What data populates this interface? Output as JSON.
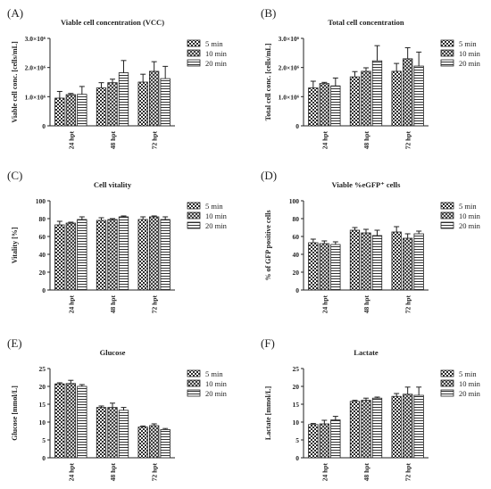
{
  "figure": {
    "series_names": [
      "5 min",
      "10 min",
      "20 min"
    ],
    "series_patterns": [
      "checker",
      "crosshatch",
      "hstripe"
    ],
    "categories": [
      "24 hpt",
      "48 hpt",
      "72 hpt"
    ]
  },
  "chart_data": [
    {
      "type": "bar",
      "panel": "(A)",
      "title": "Viable cell concentration (VCC)",
      "ylabel": "Viable cell conc. [cells/mL]",
      "ylim": [
        0,
        3000000
      ],
      "yticks": [
        {
          "v": 0,
          "label": "0"
        },
        {
          "v": 1000000,
          "label": "1.0×10⁶"
        },
        {
          "v": 2000000,
          "label": "2.0×10⁶"
        },
        {
          "v": 3000000,
          "label": "3.0×10⁶"
        }
      ],
      "categories": [
        "24 hpt",
        "48 hpt",
        "72 hpt"
      ],
      "series": [
        {
          "name": "5 min",
          "values": [
            950000,
            1300000,
            1500000
          ],
          "errors": [
            230000,
            180000,
            270000
          ]
        },
        {
          "name": "10 min",
          "values": [
            1070000,
            1480000,
            1870000
          ],
          "errors": [
            40000,
            120000,
            330000
          ]
        },
        {
          "name": "20 min",
          "values": [
            1080000,
            1820000,
            1620000
          ],
          "errors": [
            270000,
            420000,
            420000
          ]
        }
      ]
    },
    {
      "type": "bar",
      "panel": "(B)",
      "title": "Total cell concentration",
      "ylabel": "Total cell conc. [cells/mL]",
      "ylim": [
        0,
        3000000
      ],
      "yticks": [
        {
          "v": 0,
          "label": "0"
        },
        {
          "v": 1000000,
          "label": "1.0×10⁶"
        },
        {
          "v": 2000000,
          "label": "2.0×10⁶"
        },
        {
          "v": 3000000,
          "label": "3.0×10⁶"
        }
      ],
      "categories": [
        "24 hpt",
        "48 hpt",
        "72 hpt"
      ],
      "series": [
        {
          "name": "5 min",
          "values": [
            1300000,
            1680000,
            1870000
          ],
          "errors": [
            230000,
            180000,
            270000
          ]
        },
        {
          "name": "10 min",
          "values": [
            1450000,
            1870000,
            2300000
          ],
          "errors": [
            40000,
            120000,
            380000
          ]
        },
        {
          "name": "20 min",
          "values": [
            1370000,
            2230000,
            2050000
          ],
          "errors": [
            270000,
            520000,
            480000
          ]
        }
      ]
    },
    {
      "type": "bar",
      "panel": "(C)",
      "title": "Cell vitality",
      "ylabel": "Vitality [%]",
      "ylim": [
        0,
        100
      ],
      "yticks": [
        {
          "v": 0,
          "label": "0"
        },
        {
          "v": 20,
          "label": "20"
        },
        {
          "v": 40,
          "label": "40"
        },
        {
          "v": 60,
          "label": "60"
        },
        {
          "v": 80,
          "label": "80"
        },
        {
          "v": 100,
          "label": "100"
        }
      ],
      "categories": [
        "24 hpt",
        "48 hpt",
        "72 hpt"
      ],
      "series": [
        {
          "name": "5 min",
          "values": [
            73,
            78,
            79
          ],
          "errors": [
            4,
            3,
            3
          ]
        },
        {
          "name": "10 min",
          "values": [
            75,
            79,
            82
          ],
          "errors": [
            1,
            1,
            1
          ]
        },
        {
          "name": "20 min",
          "values": [
            79,
            82,
            79
          ],
          "errors": [
            3,
            1,
            3
          ]
        }
      ]
    },
    {
      "type": "bar",
      "panel": "(D)",
      "title": "Viable %eGFP⁺ cells",
      "ylabel": "% of GFP positive cells",
      "ylim": [
        0,
        100
      ],
      "yticks": [
        {
          "v": 0,
          "label": "0"
        },
        {
          "v": 20,
          "label": "20"
        },
        {
          "v": 40,
          "label": "40"
        },
        {
          "v": 60,
          "label": "60"
        },
        {
          "v": 80,
          "label": "80"
        },
        {
          "v": 100,
          "label": "100"
        }
      ],
      "categories": [
        "24 hpt",
        "48 hpt",
        "72 hpt"
      ],
      "series": [
        {
          "name": "5 min",
          "values": [
            53,
            67,
            65
          ],
          "errors": [
            4,
            3,
            6
          ]
        },
        {
          "name": "10 min",
          "values": [
            52,
            64,
            58
          ],
          "errors": [
            3,
            4,
            5
          ]
        },
        {
          "name": "20 min",
          "values": [
            51,
            61,
            63
          ],
          "errors": [
            3,
            6,
            3
          ]
        }
      ]
    },
    {
      "type": "bar",
      "panel": "(E)",
      "title": "Glucose",
      "ylabel": "Glucose [mmol/L]",
      "ylim": [
        0,
        25
      ],
      "yticks": [
        {
          "v": 0,
          "label": "0"
        },
        {
          "v": 5,
          "label": "5"
        },
        {
          "v": 10,
          "label": "10"
        },
        {
          "v": 15,
          "label": "15"
        },
        {
          "v": 20,
          "label": "20"
        },
        {
          "v": 25,
          "label": "25"
        }
      ],
      "categories": [
        "24 hpt",
        "48 hpt",
        "72 hpt"
      ],
      "series": [
        {
          "name": "5 min",
          "values": [
            20.7,
            14.1,
            8.6
          ],
          "errors": [
            0.3,
            0.4,
            0.3
          ]
        },
        {
          "name": "10 min",
          "values": [
            20.8,
            14.1,
            9.0
          ],
          "errors": [
            0.9,
            1.2,
            0.5
          ]
        },
        {
          "name": "20 min",
          "values": [
            20.0,
            13.3,
            7.9
          ],
          "errors": [
            0.5,
            0.8,
            0.3
          ]
        }
      ]
    },
    {
      "type": "bar",
      "panel": "(F)",
      "title": "Lactate",
      "ylabel": "Lactate [mmol/L]",
      "ylim": [
        0,
        25
      ],
      "yticks": [
        {
          "v": 0,
          "label": "0"
        },
        {
          "v": 5,
          "label": "5"
        },
        {
          "v": 10,
          "label": "10"
        },
        {
          "v": 15,
          "label": "15"
        },
        {
          "v": 20,
          "label": "20"
        },
        {
          "v": 25,
          "label": "25"
        }
      ],
      "categories": [
        "24 hpt",
        "48 hpt",
        "72 hpt"
      ],
      "series": [
        {
          "name": "5 min",
          "values": [
            9.3,
            15.8,
            17.2
          ],
          "errors": [
            0.3,
            0.3,
            0.8
          ]
        },
        {
          "name": "10 min",
          "values": [
            9.5,
            16.1,
            17.8
          ],
          "errors": [
            1.0,
            0.6,
            2.0
          ]
        },
        {
          "name": "20 min",
          "values": [
            10.6,
            16.7,
            17.5
          ],
          "errors": [
            1.0,
            0.3,
            2.3
          ]
        }
      ]
    }
  ]
}
